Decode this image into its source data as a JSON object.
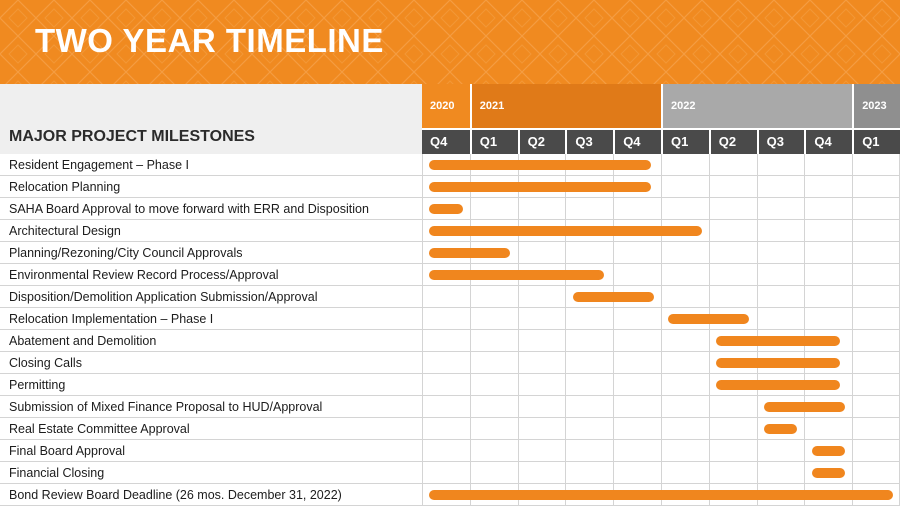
{
  "title": "TWO YEAR TIMELINE",
  "colors": {
    "accent": "#f08a20",
    "bar": "#f0861e",
    "year_current": "#e07a18",
    "year_future": "#a9a9a9",
    "year_last": "#8f8f8f",
    "quarter_header": "#4a4a4a"
  },
  "milestones_header": "MAJOR PROJECT MILESTONES",
  "years": [
    {
      "label": "2020",
      "quarters": 1,
      "tone": "accent"
    },
    {
      "label": "2021",
      "quarters": 4,
      "tone": "current"
    },
    {
      "label": "2022",
      "quarters": 4,
      "tone": "future"
    },
    {
      "label": "2023",
      "quarters": 1,
      "tone": "last"
    }
  ],
  "quarters": [
    "Q4",
    "Q1",
    "Q2",
    "Q3",
    "Q4",
    "Q1",
    "Q2",
    "Q3",
    "Q4",
    "Q1"
  ],
  "milestones": [
    {
      "name": "Resident Engagement – Phase I",
      "start": 0.15,
      "end": 4.8
    },
    {
      "name": "Relocation Planning",
      "start": 0.15,
      "end": 4.8
    },
    {
      "name": "SAHA Board Approval to move forward with ERR and Disposition",
      "start": 0.15,
      "end": 0.85
    },
    {
      "name": "Architectural Design",
      "start": 0.15,
      "end": 5.85
    },
    {
      "name": "Planning/Rezoning/City Council Approvals",
      "start": 0.15,
      "end": 1.85
    },
    {
      "name": "Environmental Review Record Process/Approval",
      "start": 0.15,
      "end": 3.8
    },
    {
      "name": "Disposition/Demolition Application Submission/Approval",
      "start": 3.15,
      "end": 4.85
    },
    {
      "name": "Relocation Implementation – Phase I",
      "start": 5.15,
      "end": 6.85
    },
    {
      "name": "Abatement and Demolition",
      "start": 6.15,
      "end": 8.75
    },
    {
      "name": "Closing Calls",
      "start": 6.15,
      "end": 8.75
    },
    {
      "name": "Permitting",
      "start": 6.15,
      "end": 8.75
    },
    {
      "name": "Submission of Mixed Finance Proposal to HUD/Approval",
      "start": 7.15,
      "end": 8.85
    },
    {
      "name": "Real Estate Committee Approval",
      "start": 7.15,
      "end": 7.85
    },
    {
      "name": "Final Board Approval",
      "start": 8.15,
      "end": 8.85
    },
    {
      "name": "Financial Closing",
      "start": 8.15,
      "end": 8.85
    },
    {
      "name": "Bond Review Board Deadline (26 mos. December 31, 2022)",
      "start": 0.15,
      "end": 9.85
    }
  ]
}
